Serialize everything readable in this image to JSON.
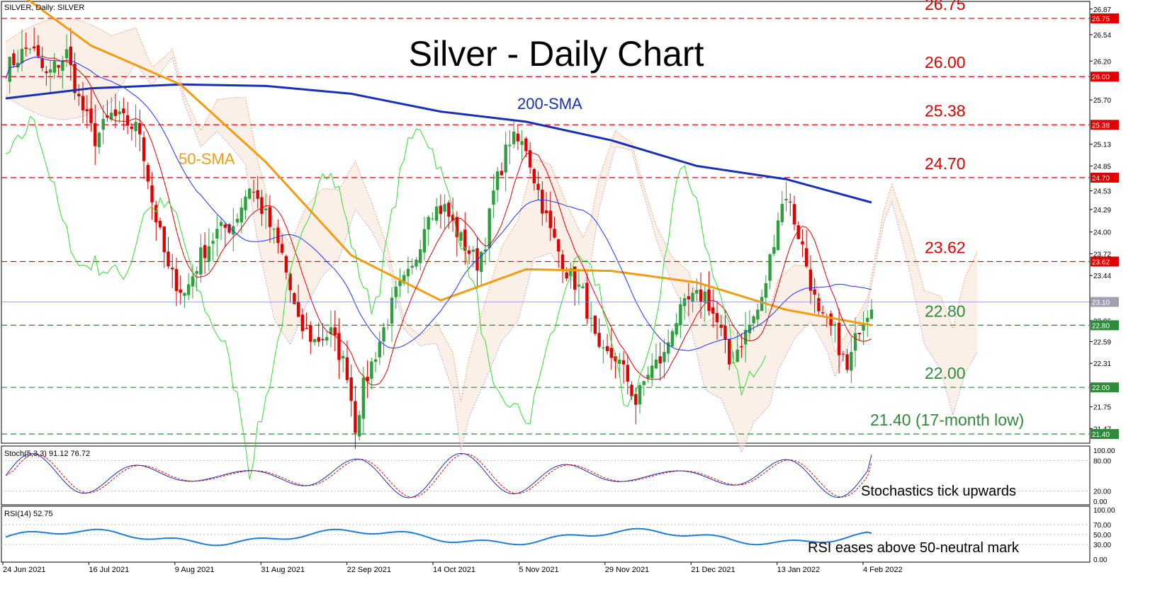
{
  "header": {
    "symbol_label": "SILVER, Daily: SILVER",
    "title": "Silver - Daily Chart"
  },
  "indicators": {
    "sma200_label": "200-SMA",
    "sma50_label": "50-SMA",
    "stoch_label": "Stoch(5,3,3) 91.12 76.72",
    "rsi_label": "RSI(14) 52.75"
  },
  "annotations": {
    "stoch_note": "Stochastics tick upwards",
    "rsi_note": "RSI eases above 50-neutral mark"
  },
  "levels": [
    {
      "label": "26.75",
      "value": 26.75,
      "color": "#e00000",
      "tag": "26.75"
    },
    {
      "label": "26.00",
      "value": 26.0,
      "color": "#e00000",
      "tag": "26.00"
    },
    {
      "label": "25.38",
      "value": 25.38,
      "color": "#e00000",
      "tag": "25.38"
    },
    {
      "label": "24.70",
      "value": 24.7,
      "color": "#e00000",
      "tag": "24.70"
    },
    {
      "label": "23.62",
      "value": 23.62,
      "color": "#e00000",
      "tag": "23.62"
    },
    {
      "label": "22.80",
      "value": 22.8,
      "color": "#2e8b3a",
      "tag": "22.80"
    },
    {
      "label": "22.00",
      "value": 22.0,
      "color": "#2e8b3a",
      "tag": "22.00"
    },
    {
      "label": "21.40 (17-month low)",
      "value": 21.4,
      "color": "#2e8b3a",
      "tag": "21.40"
    }
  ],
  "price_axis": {
    "ticks": [
      "26.87",
      "26.54",
      "26.20",
      "25.70",
      "25.13",
      "24.85",
      "24.53",
      "24.29",
      "24.00",
      "23.72",
      "23.44",
      "23.10",
      "22.86",
      "22.59",
      "22.31",
      "22.03",
      "21.75",
      "21.47"
    ],
    "current_tag": "23.10"
  },
  "stoch_axis": {
    "ticks": [
      "100.00",
      "80.00",
      "20.00",
      "0.00"
    ]
  },
  "rsi_axis": {
    "ticks": [
      "100.00",
      "70.00",
      "50.00",
      "30.00",
      "0.00"
    ]
  },
  "date_axis": [
    "24 Jun 2021",
    "16 Jul 2021",
    "9 Aug 2021",
    "31 Aug 2021",
    "22 Sep 2021",
    "14 Oct 2021",
    "5 Nov 2021",
    "29 Nov 2021",
    "21 Dec 2021",
    "13 Jan 2022",
    "4 Feb 2022"
  ],
  "colors": {
    "bull": "#2e9e3e",
    "bear": "#e00000",
    "sma200": "#1a2fb5",
    "sma50": "#f39c12",
    "tenkan": "#e00000",
    "kijun": "#1a33ff",
    "chikou": "#33dd33",
    "stoch_main": "#1a2fb5",
    "stoch_signal": "#e00000",
    "rsi": "#1e7fd8"
  },
  "chart_data": [
    {
      "type": "line",
      "title": "Silver - Daily Chart",
      "series": [
        {
          "name": "200-SMA",
          "points": [
            [
              "24 Jun 2021",
              25.72
            ],
            [
              "16 Jul 2021",
              25.85
            ],
            [
              "9 Aug 2021",
              25.9
            ],
            [
              "31 Aug 2021",
              25.88
            ],
            [
              "22 Sep 2021",
              25.78
            ],
            [
              "14 Oct 2021",
              25.55
            ],
            [
              "5 Nov 2021",
              25.42
            ],
            [
              "29 Nov 2021",
              25.18
            ],
            [
              "21 Dec 2021",
              24.85
            ],
            [
              "13 Jan 2022",
              24.68
            ],
            [
              "4 Feb 2022",
              24.38
            ]
          ]
        },
        {
          "name": "50-SMA",
          "points": [
            [
              "24 Jun 2021",
              27.2
            ],
            [
              "16 Jul 2021",
              26.4
            ],
            [
              "9 Aug 2021",
              25.9
            ],
            [
              "31 Aug 2021",
              24.9
            ],
            [
              "22 Sep 2021",
              23.7
            ],
            [
              "14 Oct 2021",
              23.12
            ],
            [
              "5 Nov 2021",
              23.52
            ],
            [
              "29 Nov 2021",
              23.5
            ],
            [
              "21 Dec 2021",
              23.35
            ],
            [
              "13 Jan 2022",
              23.0
            ],
            [
              "4 Feb 2022",
              22.8
            ]
          ]
        }
      ],
      "y_range": [
        21.3,
        26.95
      ]
    },
    {
      "type": "line",
      "title": "Stoch(5,3,3) 91.12 76.72",
      "y_range": [
        0,
        100
      ],
      "series": [
        {
          "name": "Stoch main",
          "last": 91.12
        },
        {
          "name": "Stoch signal",
          "last": 76.72
        }
      ]
    },
    {
      "type": "line",
      "title": "RSI(14) 52.75",
      "y_range": [
        0,
        100
      ],
      "series": [
        {
          "name": "RSI(14)",
          "last": 52.75
        }
      ]
    }
  ]
}
